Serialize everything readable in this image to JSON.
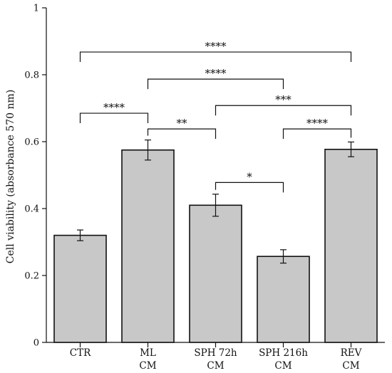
{
  "chart_data": {
    "type": "bar",
    "title": "",
    "xlabel": "",
    "ylabel": "Cell viability (absorbance 570 nm)",
    "ylim": [
      0,
      1
    ],
    "yticks": [
      0,
      0.2,
      0.4,
      0.6,
      0.8,
      1
    ],
    "ytick_labels": [
      "0",
      "0.2",
      "0.4",
      "0.6",
      "0.8",
      "1"
    ],
    "grid": false,
    "bar_color": "#c8c8c8",
    "bar_edge_color": "#111111",
    "categories": [
      {
        "key": "CTR",
        "lines": [
          "CTR"
        ]
      },
      {
        "key": "ML CM",
        "lines": [
          "ML",
          "CM"
        ]
      },
      {
        "key": "SPH 72h CM",
        "lines": [
          "SPH 72h",
          "CM"
        ]
      },
      {
        "key": "SPH 216h CM",
        "lines": [
          "SPH 216h",
          "CM"
        ]
      },
      {
        "key": "REV CM",
        "lines": [
          "REV",
          "CM"
        ]
      }
    ],
    "values": [
      0.32,
      0.575,
      0.41,
      0.257,
      0.577
    ],
    "errors": [
      0.016,
      0.03,
      0.033,
      0.02,
      0.022
    ],
    "significance": [
      {
        "from": 0,
        "to": 1,
        "label": "****",
        "y": 0.685
      },
      {
        "from": 1,
        "to": 2,
        "label": "**",
        "y": 0.638
      },
      {
        "from": 2,
        "to": 3,
        "label": "*",
        "y": 0.478
      },
      {
        "from": 3,
        "to": 4,
        "label": "****",
        "y": 0.638
      },
      {
        "from": 2,
        "to": 4,
        "label": "***",
        "y": 0.708
      },
      {
        "from": 1,
        "to": 3,
        "label": "****",
        "y": 0.787
      },
      {
        "from": 0,
        "to": 4,
        "label": "****",
        "y": 0.868
      }
    ]
  }
}
